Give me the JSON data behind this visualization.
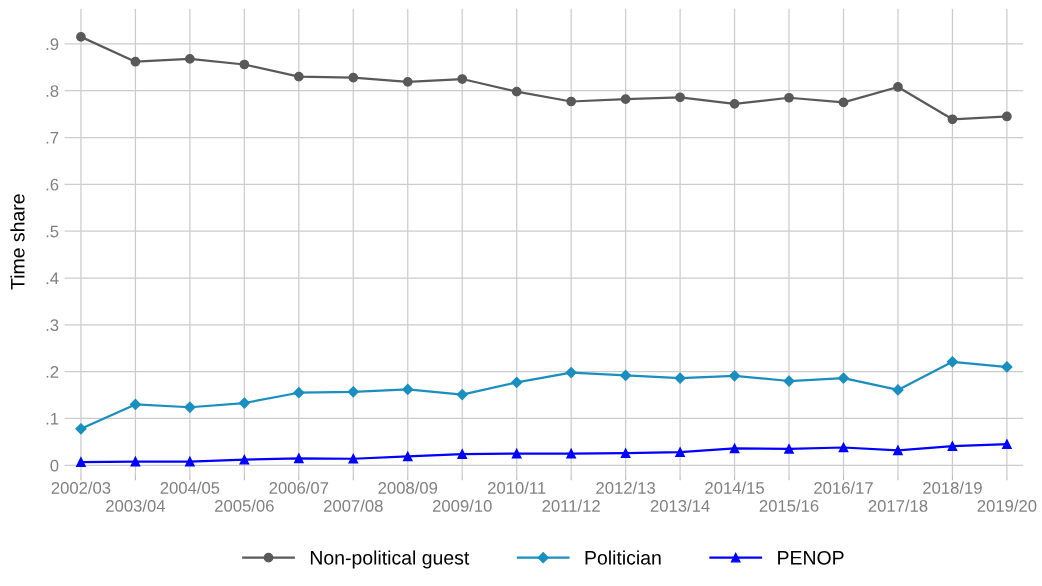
{
  "chart_data": {
    "type": "line",
    "ylabel": "Time share",
    "categories": [
      "2002/03",
      "2003/04",
      "2004/05",
      "2005/06",
      "2006/07",
      "2007/08",
      "2008/09",
      "2009/10",
      "2010/11",
      "2011/12",
      "2012/13",
      "2013/14",
      "2014/15",
      "2015/16",
      "2016/17",
      "2017/18",
      "2018/19",
      "2019/20"
    ],
    "series": [
      {
        "name": "Non-political guest",
        "color": "#595959",
        "marker": "circle",
        "values": [
          0.915,
          0.862,
          0.868,
          0.856,
          0.83,
          0.828,
          0.819,
          0.825,
          0.798,
          0.777,
          0.782,
          0.786,
          0.772,
          0.785,
          0.775,
          0.808,
          0.739,
          0.745
        ]
      },
      {
        "name": "Politician",
        "color": "#1a8fbf",
        "marker": "diamond",
        "values": [
          0.078,
          0.13,
          0.124,
          0.133,
          0.155,
          0.157,
          0.162,
          0.151,
          0.177,
          0.198,
          0.192,
          0.186,
          0.191,
          0.18,
          0.186,
          0.161,
          0.221,
          0.21
        ]
      },
      {
        "name": "PENOP",
        "color": "#0000ff",
        "marker": "triangle",
        "values": [
          0.007,
          0.008,
          0.008,
          0.012,
          0.015,
          0.014,
          0.019,
          0.024,
          0.025,
          0.025,
          0.026,
          0.028,
          0.036,
          0.035,
          0.038,
          0.032,
          0.041,
          0.045
        ]
      }
    ],
    "ylim": [
      -0.02,
      0.975
    ],
    "yticks": [
      0,
      {
        "value": 0.1,
        "label": ".1"
      },
      {
        "value": 0.2,
        "label": ".2"
      },
      {
        "value": 0.3,
        "label": ".3"
      },
      {
        "value": 0.4,
        "label": ".4"
      },
      {
        "value": 0.5,
        "label": ".5"
      },
      {
        "value": 0.6,
        "label": ".6"
      },
      {
        "value": 0.7,
        "label": ".7"
      },
      {
        "value": 0.8,
        "label": ".8"
      },
      {
        "value": 0.9,
        "label": ".9"
      }
    ],
    "grid": true,
    "legend": "bottom",
    "line_style": "solid"
  }
}
